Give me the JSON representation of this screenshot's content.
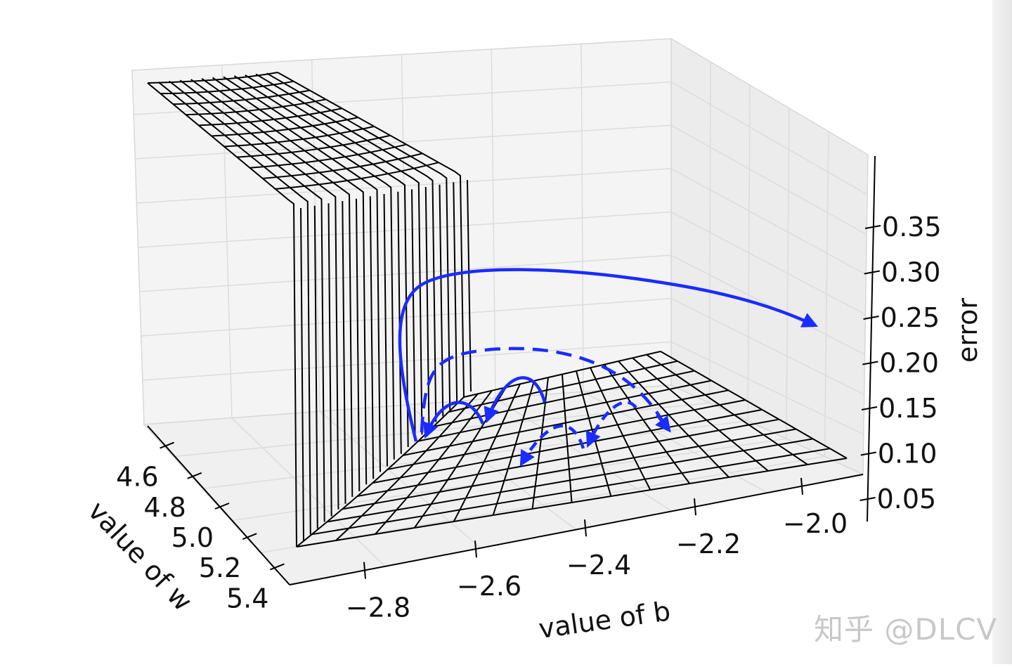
{
  "chart_data": {
    "type": "surface3d",
    "title": "",
    "xlabel": "value of b",
    "ylabel": "value of w",
    "zlabel": "error",
    "x_ticks": [
      "−2.8",
      "−2.6",
      "−2.4",
      "−2.2",
      "−2.0"
    ],
    "y_ticks": [
      "4.6",
      "4.8",
      "5.0",
      "5.2",
      "5.4"
    ],
    "z_ticks": [
      "0.05",
      "0.10",
      "0.15",
      "0.20",
      "0.25",
      "0.30",
      "0.35"
    ],
    "grid": true,
    "surface": {
      "style": "wireframe",
      "color": "#000000"
    },
    "annotations": [
      {
        "kind": "trajectory",
        "style": "solid",
        "color": "#1a2cff",
        "description": "large learning rate, diverges"
      },
      {
        "kind": "trajectory",
        "style": "dashed",
        "color": "#1a2cff",
        "description": "oscillating steps"
      },
      {
        "kind": "trajectory",
        "style": "dashed",
        "color": "#1a2cff",
        "description": "small hops"
      }
    ]
  },
  "watermark": "知乎 @DLCV"
}
